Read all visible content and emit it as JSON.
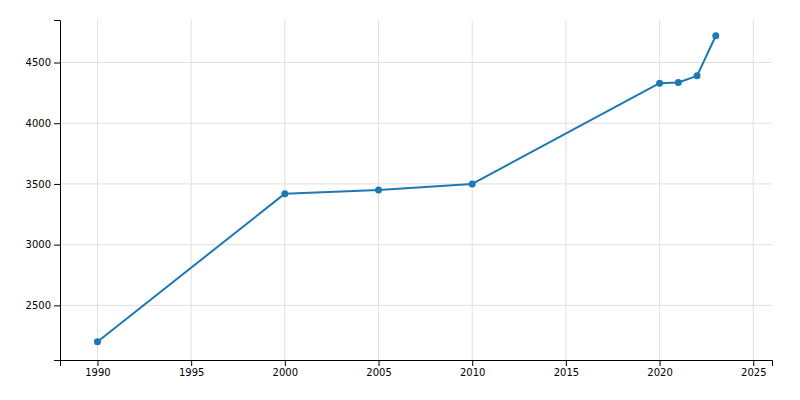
{
  "chart_data": {
    "type": "line",
    "x": [
      1990,
      2000,
      2005,
      2010,
      2020,
      2021,
      2022,
      2023
    ],
    "values": [
      2200,
      3420,
      3450,
      3500,
      4330,
      4335,
      4390,
      4720
    ],
    "xlim": [
      1988,
      2026
    ],
    "ylim": [
      2050,
      4850
    ],
    "xticks": [
      1990,
      1995,
      2000,
      2005,
      2010,
      2015,
      2020,
      2025
    ],
    "yticks": [
      2500,
      3000,
      3500,
      4000,
      4500
    ],
    "marker": "circle",
    "grid": true
  }
}
